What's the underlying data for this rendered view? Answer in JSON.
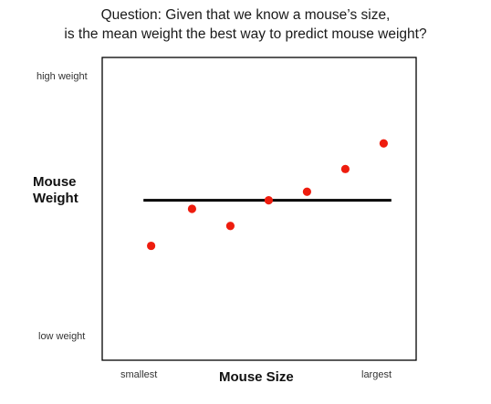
{
  "question": {
    "line1": "Question:  Given that we know a mouse’s size,",
    "line2": "is the mean weight the best way to predict mouse weight?"
  },
  "chart_data": {
    "type": "scatter",
    "xlabel": "Mouse Size",
    "ylabel_lines": [
      "Mouse",
      "Weight"
    ],
    "x_tick_labels": {
      "min": "smallest",
      "max": "largest"
    },
    "y_tick_labels": {
      "max": "high weight",
      "min": "low weight"
    },
    "xlim": [
      0,
      10
    ],
    "ylim": [
      0,
      10
    ],
    "points": [
      {
        "x": 1.2,
        "y": 3.7
      },
      {
        "x": 2.8,
        "y": 5.0
      },
      {
        "x": 4.3,
        "y": 4.4
      },
      {
        "x": 5.8,
        "y": 5.3
      },
      {
        "x": 7.3,
        "y": 5.6
      },
      {
        "x": 8.8,
        "y": 6.4
      },
      {
        "x": 10.3,
        "y": 7.3
      }
    ],
    "mean_line": {
      "y": 5.3,
      "x_start": 0.9,
      "x_end": 10.6
    },
    "colors": {
      "points": "#ee1c0e",
      "mean_line": "#000000",
      "frame": "#000000"
    },
    "grid": false,
    "legend": "none"
  }
}
